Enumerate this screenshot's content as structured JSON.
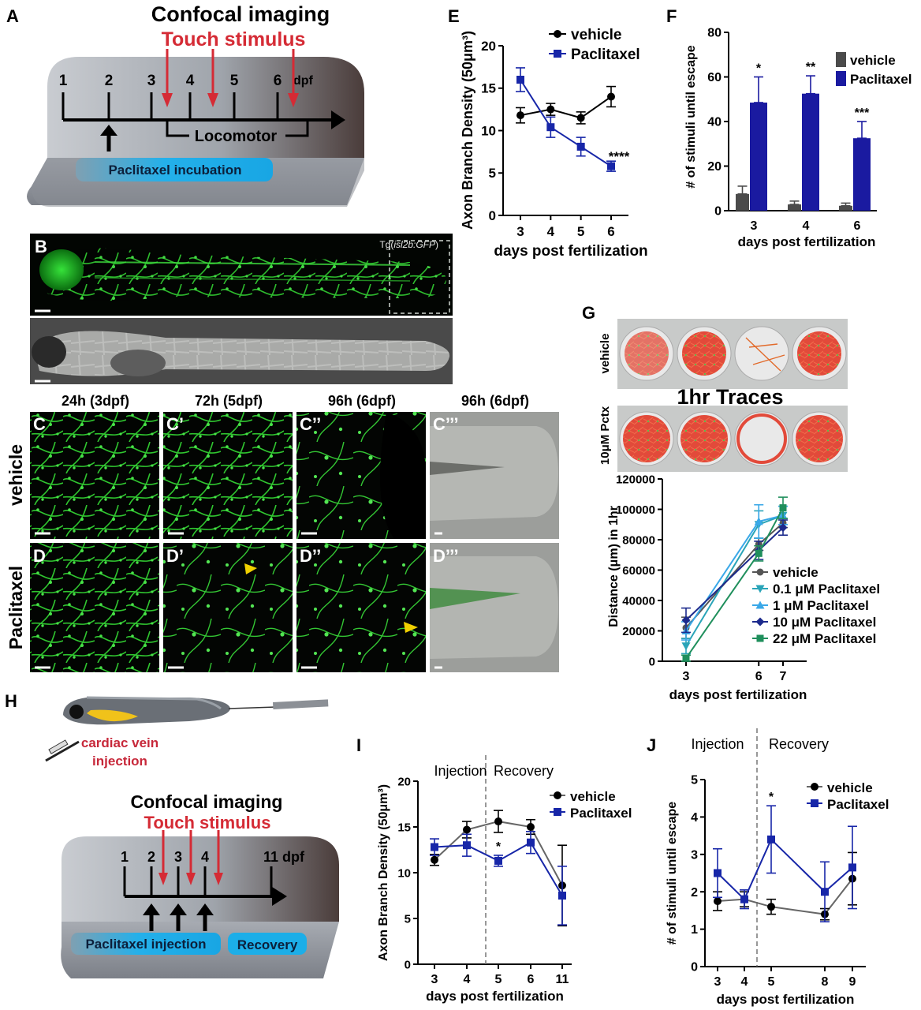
{
  "panel_letters": {
    "A": "A",
    "B": "B",
    "E": "E",
    "F": "F",
    "G": "G",
    "H": "H",
    "I": "I",
    "J": "J"
  },
  "panelA": {
    "title1": "Confocal imaging",
    "title2": "Touch stimulus",
    "days": [
      "1",
      "2",
      "3",
      "4",
      "5",
      "6"
    ],
    "dpf": "dpf",
    "locomotor": "Locomotor",
    "incubation": "Paclitaxel incubation",
    "colors": {
      "arrow_red": "#d52b35",
      "incubation_fill": "#2cb4e8",
      "stage": "#8f959c"
    }
  },
  "panelB": {
    "transgene_prefix": "Tg(",
    "transgene_italic": "isl2b:GFP",
    "transgene_suffix": ")"
  },
  "panelCD": {
    "columns": [
      "24h (3dpf)",
      "72h (5dpf)",
      "96h (6dpf)",
      "96h (6dpf)"
    ],
    "row_labels": [
      "vehicle",
      "Paclitaxel"
    ],
    "tiles_top": [
      "C",
      "C’",
      "C’’",
      "C’’’"
    ],
    "tiles_bottom": [
      "D",
      "D’",
      "D’’",
      "D’’’"
    ]
  },
  "panelG": {
    "row1": "vehicle",
    "row2": "10μM Pctx",
    "traces_title": "1hr Traces"
  },
  "panelH": {
    "injection_label": "cardiac vein",
    "injection_label2": "injection",
    "title1": "Confocal imaging",
    "title2": "Touch stimulus",
    "days": [
      "1",
      "2",
      "3",
      "4",
      "11 dpf"
    ],
    "injection_box": "Paclitaxel injection",
    "recovery_box": "Recovery"
  },
  "chart_data": [
    {
      "id": "E",
      "type": "line",
      "x": [
        3,
        4,
        5,
        6
      ],
      "series": [
        {
          "name": "vehicle",
          "values": [
            11.8,
            12.5,
            11.5,
            14.0
          ],
          "err": [
            0.9,
            0.7,
            0.7,
            1.2
          ],
          "color": "#000000",
          "marker": "circle"
        },
        {
          "name": "Paclitaxel",
          "values": [
            16.0,
            10.4,
            8.1,
            5.8
          ],
          "err": [
            1.4,
            1.2,
            1.1,
            0.6
          ],
          "color": "#1726a8",
          "marker": "square"
        }
      ],
      "xlabel": "days post fertilization",
      "ylabel": "Axon Branch Density (50μm³)",
      "ylim": [
        0,
        20
      ],
      "yticks": [
        0,
        5,
        10,
        15,
        20
      ],
      "annotations": [
        {
          "x": 6,
          "y": 7.0,
          "text": "****"
        }
      ],
      "legend": "top-right"
    },
    {
      "id": "F",
      "type": "bar",
      "categories": [
        "3",
        "4",
        "6"
      ],
      "series": [
        {
          "name": "vehicle",
          "values": [
            7.5,
            2.8,
            2.2
          ],
          "err": [
            3.5,
            1.5,
            1.2
          ],
          "color": "#4b4b4b"
        },
        {
          "name": "Paclitaxel",
          "values": [
            48.5,
            52.5,
            32.5
          ],
          "err": [
            11.5,
            8.0,
            7.5
          ],
          "color": "#1a1aa0"
        }
      ],
      "xlabel": "days post fertilization",
      "ylabel": "# of stimuli until escape",
      "ylim": [
        0,
        80
      ],
      "yticks": [
        0,
        20,
        40,
        60,
        80
      ],
      "annotations": [
        "*",
        "**",
        "***"
      ],
      "legend": "top-right"
    },
    {
      "id": "G",
      "type": "line",
      "x": [
        3,
        6,
        7
      ],
      "series": [
        {
          "name": "vehicle",
          "values": [
            22000,
            77000,
            91000
          ],
          "err": [
            7000,
            4000,
            3000
          ],
          "color": "#555555",
          "marker": "circle"
        },
        {
          "name": "0.1 μM Paclitaxel",
          "values": [
            10000,
            90000,
            96000
          ],
          "err": [
            5000,
            9000,
            6000
          ],
          "color": "#2aa4b8",
          "marker": "tri-down"
        },
        {
          "name": "1 μM Paclitaxel",
          "values": [
            20000,
            92000,
            96000
          ],
          "err": [
            6000,
            11000,
            6000
          ],
          "color": "#3aa8e8",
          "marker": "tri-up"
        },
        {
          "name": "10 μM Paclitaxel",
          "values": [
            27000,
            73000,
            88000
          ],
          "err": [
            8000,
            6000,
            5000
          ],
          "color": "#1c2a8c",
          "marker": "diamond"
        },
        {
          "name": "22 μM Paclitaxel",
          "values": [
            2000,
            71000,
            101000
          ],
          "err": [
            2000,
            5000,
            7000
          ],
          "color": "#1f8f5c",
          "marker": "square"
        }
      ],
      "xlabel": "days post fertilization",
      "ylabel": "Distance (μm) in 1hr",
      "ylim": [
        0,
        120000
      ],
      "yticks": [
        "0",
        "20000",
        "40000",
        "60000",
        "80000",
        "100000",
        "120000"
      ],
      "legend": "bottom-right"
    },
    {
      "id": "I",
      "type": "line",
      "categories": [
        "3",
        "4",
        "5",
        "6",
        "11"
      ],
      "series": [
        {
          "name": "vehicle",
          "values": [
            11.4,
            14.7,
            15.6,
            15.0,
            8.6
          ],
          "err": [
            0.6,
            0.9,
            1.2,
            0.8,
            4.4
          ],
          "color": "#000000",
          "line": "#666666",
          "marker": "circle"
        },
        {
          "name": "Paclitaxel",
          "values": [
            12.8,
            13.0,
            11.3,
            13.3,
            7.5
          ],
          "err": [
            0.9,
            1.2,
            0.6,
            1.2,
            3.2
          ],
          "color": "#1726a8",
          "marker": "square"
        }
      ],
      "xlabel": "days post fertilization",
      "ylabel": "Axon Branch Density (50μm³)",
      "ylim": [
        0,
        20
      ],
      "yticks": [
        0,
        5,
        10,
        15,
        20
      ],
      "phase_labels": [
        "Injection",
        "Recovery"
      ],
      "annotations": [
        {
          "cat": "5",
          "text": "*"
        }
      ],
      "legend": "top-right"
    },
    {
      "id": "J",
      "type": "line",
      "categories": [
        "3",
        "4",
        "5",
        "8",
        "9"
      ],
      "series": [
        {
          "name": "vehicle",
          "values": [
            1.75,
            1.8,
            1.6,
            1.4,
            2.35
          ],
          "err": [
            0.25,
            0.2,
            0.2,
            0.15,
            0.7
          ],
          "color": "#000000",
          "line": "#666666",
          "marker": "circle"
        },
        {
          "name": "Paclitaxel",
          "values": [
            2.5,
            1.8,
            3.4,
            2.0,
            2.65
          ],
          "err": [
            0.65,
            0.25,
            0.9,
            0.8,
            1.1
          ],
          "color": "#1726a8",
          "marker": "square"
        }
      ],
      "xlabel": "days post fertilization",
      "ylabel": "# of stimuli until escape",
      "ylim": [
        0,
        5
      ],
      "yticks": [
        0,
        1,
        2,
        3,
        4,
        5
      ],
      "phase_labels": [
        "Injection",
        "Recovery"
      ],
      "annotations": [
        {
          "cat": "5",
          "text": "*"
        }
      ],
      "legend": "top-right"
    }
  ]
}
